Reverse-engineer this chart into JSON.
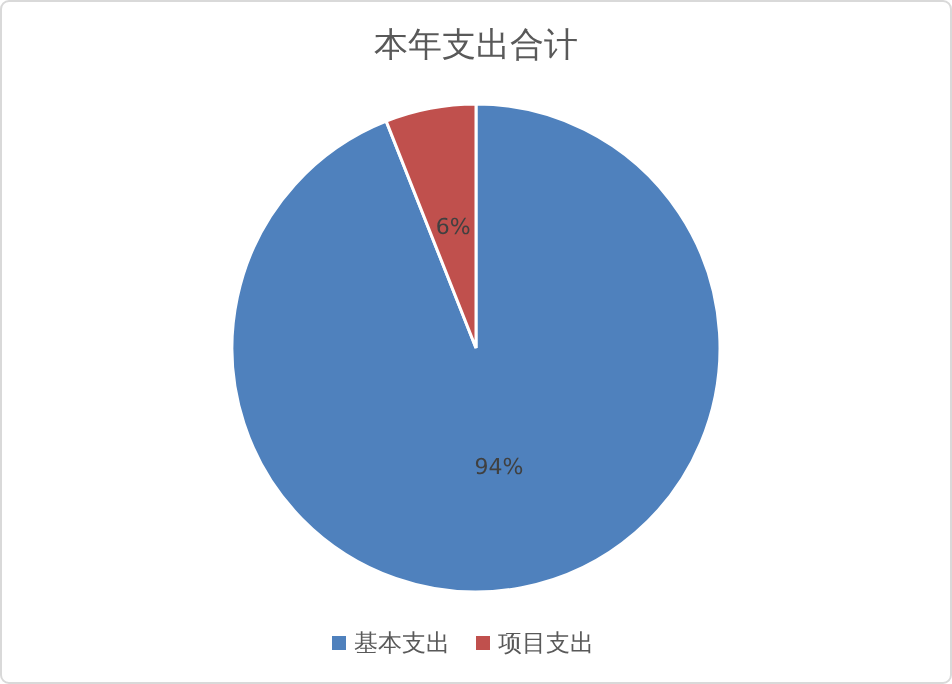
{
  "chart_data": {
    "type": "pie",
    "title": "本年支出合计",
    "categories": [
      "基本支出",
      "项目支出"
    ],
    "values": [
      94,
      6
    ],
    "value_labels": [
      "94%",
      "6%"
    ],
    "colors": [
      "#4f81bd",
      "#c0504d"
    ],
    "legend": "bottom"
  }
}
